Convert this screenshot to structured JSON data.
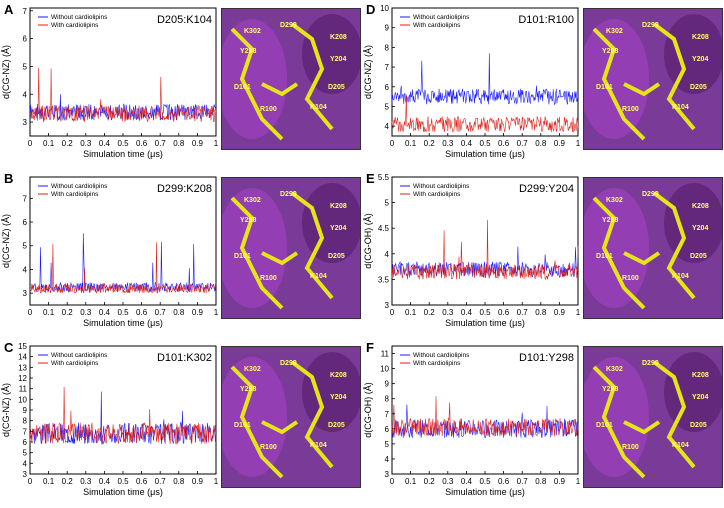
{
  "panels": [
    {
      "letter": "A",
      "pair": "D205:K104",
      "ylabel": "d(CG-NZ) (Å)",
      "yticks": [
        "3",
        "4",
        "5",
        "6",
        "7"
      ],
      "ymin": 2.5,
      "ymax": 7.1,
      "base_blue": 3.35,
      "base_red": 3.3,
      "noise": 0.3,
      "seed": 1
    },
    {
      "letter": "B",
      "pair": "D299:K208",
      "ylabel": "d(CG-NZ) (Å)",
      "yticks": [
        "3",
        "4",
        "5",
        "6",
        "7"
      ],
      "ymin": 2.5,
      "ymax": 7.9,
      "base_blue": 3.25,
      "base_red": 3.2,
      "noise": 0.2,
      "seed": 2
    },
    {
      "letter": "C",
      "pair": "D101:K302",
      "ylabel": "d(CG-NZ) (Å)",
      "yticks": [
        "3",
        "4",
        "5",
        "6",
        "7",
        "8",
        "9",
        "10",
        "11",
        "12",
        "13",
        "14",
        "15"
      ],
      "ymin": 3,
      "ymax": 15,
      "base_blue": 6.8,
      "base_red": 6.8,
      "noise": 1.0,
      "seed": 3
    },
    {
      "letter": "D",
      "pair": "D101:R100",
      "ylabel": "d(CG-NZ) (Å)",
      "yticks": [
        "4",
        "5",
        "6",
        "7",
        "8",
        "9",
        "10"
      ],
      "ymin": 3.5,
      "ymax": 10,
      "base_blue": 5.5,
      "base_red": 4.1,
      "noise": 0.4,
      "seed": 4
    },
    {
      "letter": "E",
      "pair": "D299:Y204",
      "ylabel": "d(CG-OH) (Å)",
      "yticks": [
        "3",
        "3.5",
        "4",
        "4.5",
        "5",
        "5.5"
      ],
      "ymin": 3,
      "ymax": 5.5,
      "base_blue": 3.7,
      "base_red": 3.65,
      "noise": 0.15,
      "seed": 5
    },
    {
      "letter": "F",
      "pair": "D101:Y298",
      "ylabel": "d(CG-OH) (Å)",
      "yticks": [
        "3",
        "4",
        "5",
        "6",
        "7",
        "8",
        "9",
        "10",
        "11"
      ],
      "ymin": 3,
      "ymax": 11.5,
      "base_blue": 6.0,
      "base_red": 6.1,
      "noise": 0.6,
      "seed": 6
    }
  ],
  "common": {
    "xlabel": "Simulation time (μs)",
    "xticks": [
      "0",
      "0.1",
      "0.2",
      "0.3",
      "0.4",
      "0.5",
      "0.6",
      "0.7",
      "0.8",
      "0.9",
      "1"
    ],
    "legend_blue": "Without cardiolipins",
    "legend_red": "With cardiolipins",
    "color_blue": "#1a1aff",
    "color_red": "#e0201a",
    "residue_labels": [
      "K302",
      "D299",
      "K208",
      "Y298",
      "Y204",
      "D101",
      "D205",
      "R100",
      "K104"
    ]
  },
  "chart_data": [
    {
      "type": "line",
      "title": "D205:K104",
      "xlabel": "Simulation time (μs)",
      "ylabel": "d(CG-NZ) (Å)",
      "xlim": [
        0,
        1
      ],
      "ylim": [
        2.5,
        7.1
      ],
      "series": [
        {
          "name": "Without cardiolipins",
          "mean": 3.35
        },
        {
          "name": "With cardiolipins",
          "mean": 3.3
        }
      ]
    },
    {
      "type": "line",
      "title": "D299:K208",
      "xlabel": "Simulation time (μs)",
      "ylabel": "d(CG-NZ) (Å)",
      "xlim": [
        0,
        1
      ],
      "ylim": [
        2.5,
        7.9
      ],
      "series": [
        {
          "name": "Without cardiolipins",
          "mean": 3.25
        },
        {
          "name": "With cardiolipins",
          "mean": 3.2
        }
      ]
    },
    {
      "type": "line",
      "title": "D101:K302",
      "xlabel": "Simulation time (μs)",
      "ylabel": "d(CG-NZ) (Å)",
      "xlim": [
        0,
        1
      ],
      "ylim": [
        3,
        15
      ],
      "series": [
        {
          "name": "Without cardiolipins",
          "mean": 6.8
        },
        {
          "name": "With cardiolipins",
          "mean": 6.8
        }
      ]
    },
    {
      "type": "line",
      "title": "D101:R100",
      "xlabel": "Simulation time (μs)",
      "ylabel": "d(CG-NZ) (Å)",
      "xlim": [
        0,
        1
      ],
      "ylim": [
        3.5,
        10
      ],
      "series": [
        {
          "name": "Without cardiolipins",
          "mean": 5.5
        },
        {
          "name": "With cardiolipins",
          "mean": 4.1
        }
      ]
    },
    {
      "type": "line",
      "title": "D299:Y204",
      "xlabel": "Simulation time (μs)",
      "ylabel": "d(CG-OH) (Å)",
      "xlim": [
        0,
        1
      ],
      "ylim": [
        3,
        5.5
      ],
      "series": [
        {
          "name": "Without cardiolipins",
          "mean": 3.7
        },
        {
          "name": "With cardiolipins",
          "mean": 3.65
        }
      ]
    },
    {
      "type": "line",
      "title": "D101:Y298",
      "xlabel": "Simulation time (μs)",
      "ylabel": "d(CG-OH) (Å)",
      "xlim": [
        0,
        1
      ],
      "ylim": [
        3,
        11.5
      ],
      "series": [
        {
          "name": "Without cardiolipins",
          "mean": 6.0
        },
        {
          "name": "With cardiolipins",
          "mean": 6.1
        }
      ]
    }
  ]
}
